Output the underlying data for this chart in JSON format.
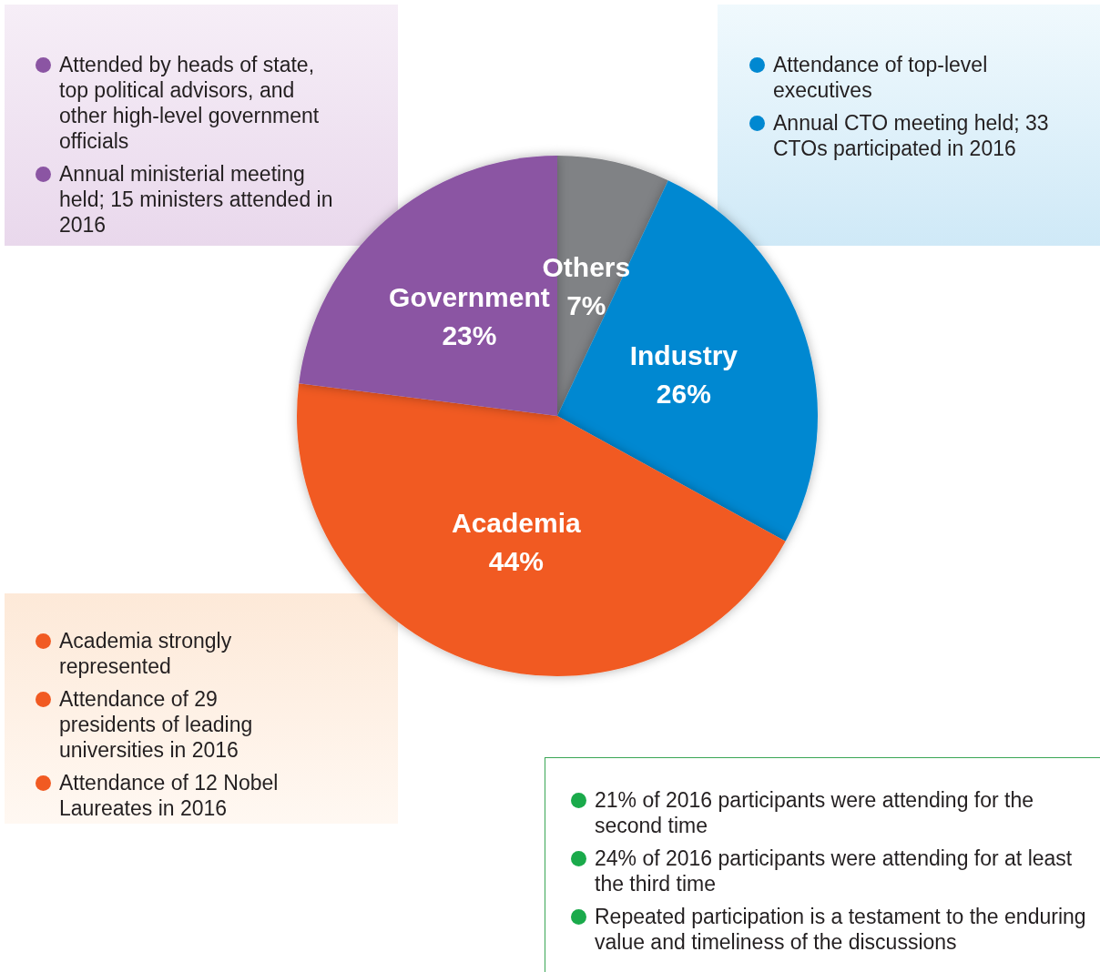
{
  "chart_data": {
    "type": "pie",
    "categories": [
      "Others",
      "Industry",
      "Academia",
      "Government"
    ],
    "values": [
      7,
      26,
      44,
      23
    ],
    "value_labels": [
      "7%",
      "26%",
      "44%",
      "23%"
    ],
    "colors": [
      "#808285",
      "#0088d1",
      "#f15a22",
      "#8b55a3"
    ],
    "annotations": [
      "Attended by heads of state, top political advisors, and other high-level government officials",
      "Annual ministerial meeting held; 15 ministers attended in 2016",
      "Attendance of top-level executives",
      "Annual CTO meeting held; 33 CTOs participated in 2016",
      "Academia strongly represented",
      "Attendance of 29 presidents of leading universities in 2016",
      "Attendance of 12 Nobel Laureates in 2016",
      "21% of 2016 participants were attending for the second time",
      "24% of 2016 participants were attending for at least the third time",
      "Repeated participation is a testament to the enduring value and timeliness of the discussions"
    ]
  }
}
